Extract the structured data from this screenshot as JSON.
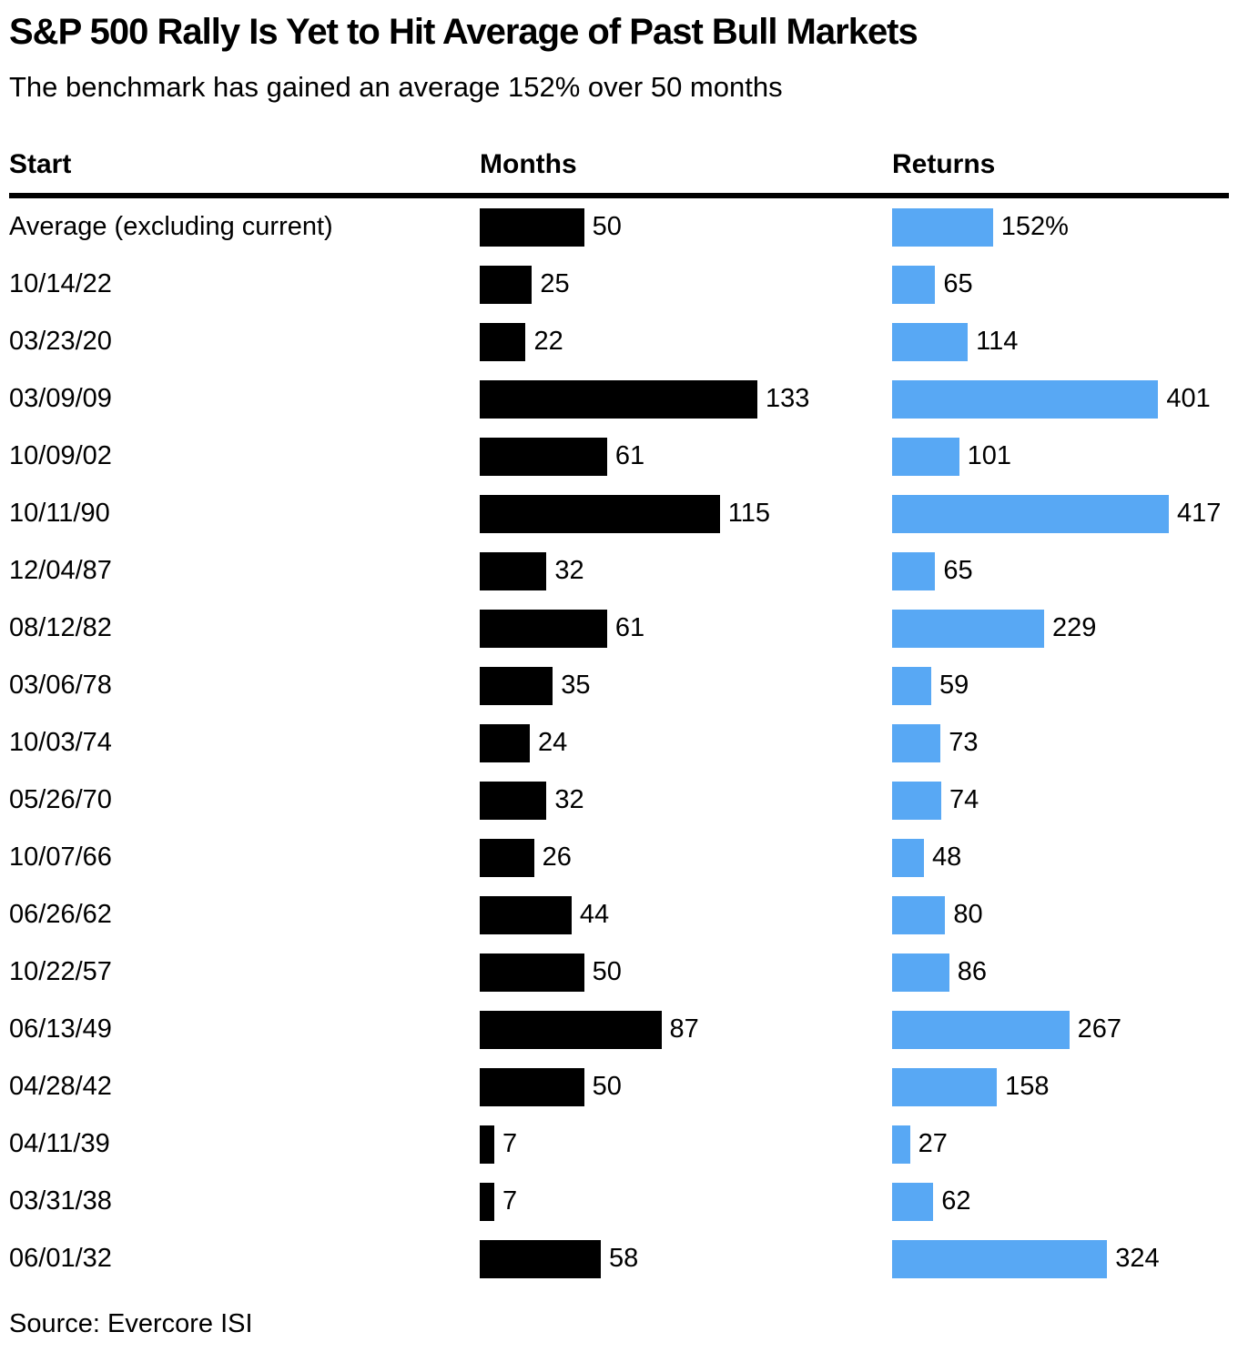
{
  "header": {
    "title": "S&P 500 Rally Is Yet to Hit Average of Past Bull Markets",
    "subtitle": "The benchmark has gained an average 152% over 50 months"
  },
  "columns": {
    "start": "Start",
    "months": "Months",
    "returns": "Returns"
  },
  "colors": {
    "months_bar": "#000000",
    "returns_bar": "#58A8F4",
    "divider": "#000000"
  },
  "chart_data": {
    "type": "bar",
    "orientation": "horizontal",
    "legend": "none",
    "grid": false,
    "months_axis_max": 133,
    "returns_axis_max": 417,
    "rows": [
      {
        "start": "Average (excluding current)",
        "months": 50,
        "months_label": "50",
        "returns": 152,
        "returns_label": "152%"
      },
      {
        "start": "10/14/22",
        "months": 25,
        "months_label": "25",
        "returns": 65,
        "returns_label": "65"
      },
      {
        "start": "03/23/20",
        "months": 22,
        "months_label": "22",
        "returns": 114,
        "returns_label": "114"
      },
      {
        "start": "03/09/09",
        "months": 133,
        "months_label": "133",
        "returns": 401,
        "returns_label": "401"
      },
      {
        "start": "10/09/02",
        "months": 61,
        "months_label": "61",
        "returns": 101,
        "returns_label": "101"
      },
      {
        "start": "10/11/90",
        "months": 115,
        "months_label": "115",
        "returns": 417,
        "returns_label": "417"
      },
      {
        "start": "12/04/87",
        "months": 32,
        "months_label": "32",
        "returns": 65,
        "returns_label": "65"
      },
      {
        "start": "08/12/82",
        "months": 61,
        "months_label": "61",
        "returns": 229,
        "returns_label": "229"
      },
      {
        "start": "03/06/78",
        "months": 35,
        "months_label": "35",
        "returns": 59,
        "returns_label": "59"
      },
      {
        "start": "10/03/74",
        "months": 24,
        "months_label": "24",
        "returns": 73,
        "returns_label": "73"
      },
      {
        "start": "05/26/70",
        "months": 32,
        "months_label": "32",
        "returns": 74,
        "returns_label": "74"
      },
      {
        "start": "10/07/66",
        "months": 26,
        "months_label": "26",
        "returns": 48,
        "returns_label": "48"
      },
      {
        "start": "06/26/62",
        "months": 44,
        "months_label": "44",
        "returns": 80,
        "returns_label": "80"
      },
      {
        "start": "10/22/57",
        "months": 50,
        "months_label": "50",
        "returns": 86,
        "returns_label": "86"
      },
      {
        "start": "06/13/49",
        "months": 87,
        "months_label": "87",
        "returns": 267,
        "returns_label": "267"
      },
      {
        "start": "04/28/42",
        "months": 50,
        "months_label": "50",
        "returns": 158,
        "returns_label": "158"
      },
      {
        "start": "04/11/39",
        "months": 7,
        "months_label": "7",
        "returns": 27,
        "returns_label": "27"
      },
      {
        "start": "03/31/38",
        "months": 7,
        "months_label": "7",
        "returns": 62,
        "returns_label": "62"
      },
      {
        "start": "06/01/32",
        "months": 58,
        "months_label": "58",
        "returns": 324,
        "returns_label": "324"
      }
    ]
  },
  "footer": {
    "source": "Source: Evercore ISI"
  }
}
